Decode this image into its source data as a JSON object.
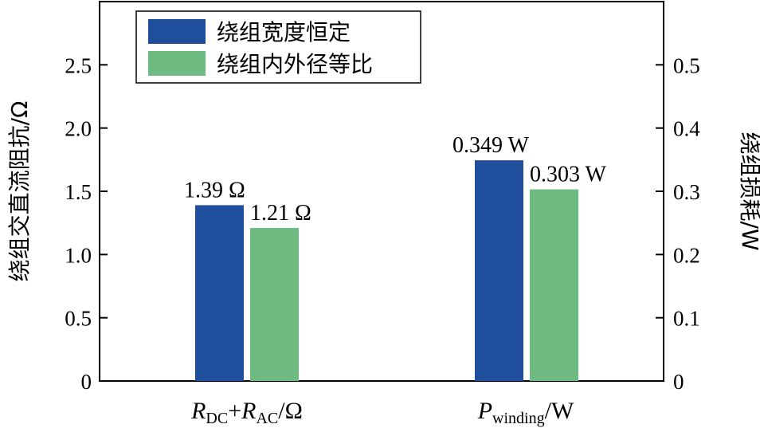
{
  "chart_data": {
    "type": "bar",
    "categories": [
      {
        "main": "R",
        "sub": "DC",
        "mid": "+",
        "main2": "R",
        "sub2": "AC",
        "unit": "/Ω"
      },
      {
        "main": "P",
        "sub": "winding",
        "mid": "",
        "main2": "",
        "sub2": "",
        "unit": "/W"
      }
    ],
    "series": [
      {
        "name": "绕组宽度恒定",
        "color": "#1f4e9c",
        "values": [
          1.39,
          0.349
        ],
        "labels": [
          "1.39 Ω",
          "0.349 W"
        ]
      },
      {
        "name": "绕组内外径等比",
        "color": "#6dbb80",
        "values": [
          1.21,
          0.303
        ],
        "labels": [
          "1.21 Ω",
          "0.303 W"
        ]
      }
    ],
    "category_axis": [
      "left",
      "right"
    ],
    "left_axis": {
      "label": "绕组交直流阻抗/Ω",
      "ylim": [
        0,
        3.0
      ],
      "ticks": [
        "0",
        "0.5",
        "1.0",
        "1.5",
        "2.0",
        "2.5"
      ],
      "tick_values": [
        0,
        0.5,
        1.0,
        1.5,
        2.0,
        2.5
      ]
    },
    "right_axis": {
      "label": "绕组损耗/W",
      "ylim": [
        0,
        0.6
      ],
      "ticks": [
        "0",
        "0.1",
        "0.2",
        "0.3",
        "0.4",
        "0.5"
      ],
      "tick_values": [
        0,
        0.1,
        0.2,
        0.3,
        0.4,
        0.5
      ]
    },
    "legend_position": "top-left",
    "grid": false
  }
}
